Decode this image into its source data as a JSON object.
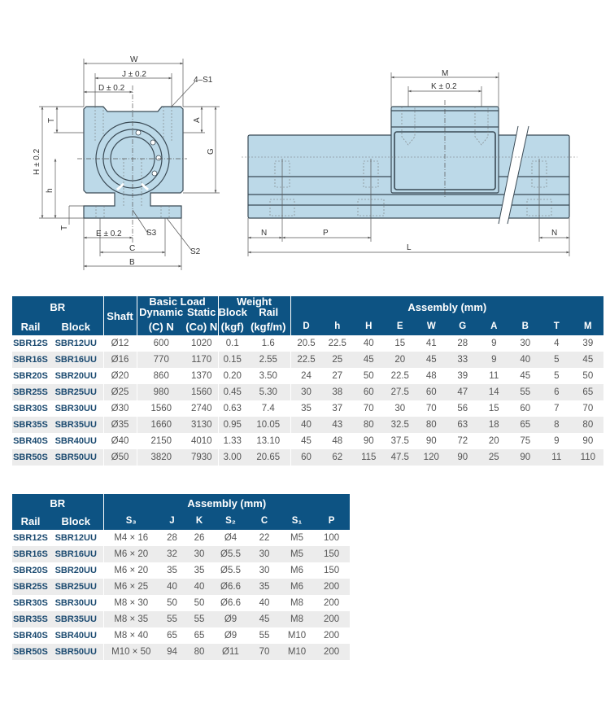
{
  "colors": {
    "header": "#0d5383",
    "code_text": "#1b4a70",
    "part_fill": "#bcd9e8",
    "alt_row": "#ececec"
  },
  "drawings": {
    "front": {
      "W": "W",
      "J": "J ± 0.2",
      "D": "D ± 0.2",
      "S1": "4–S1",
      "T": "T",
      "A": "A",
      "H": "H ± 0.2",
      "G": "G",
      "h": "h",
      "T2": "T",
      "E": "E ± 0.2",
      "S3": "S3",
      "C": "C",
      "S2": "S2",
      "B": "B"
    },
    "side": {
      "M": "M",
      "K": "K ± 0.2",
      "N1": "N",
      "P": "P",
      "N2": "N",
      "L": "L"
    }
  },
  "table1": {
    "group_br": "BR",
    "col_rail": "Rail",
    "col_block": "Block",
    "col_shaft": "Shaft",
    "group_load": "Basic Load",
    "col_dynamic": "Dynamic",
    "col_dynamic_unit": "(C) N",
    "col_static": "Static",
    "col_static_unit": "(Co) N",
    "group_weight": "Weight",
    "col_wblock": "Block",
    "col_wblock_unit": "(kgf)",
    "col_wrail": "Rail",
    "col_wrail_unit": "(kgf/m)",
    "group_assembly": "Assembly (mm)",
    "assembly_cols": [
      "D",
      "h",
      "H",
      "E",
      "W",
      "G",
      "A",
      "B",
      "T",
      "M"
    ],
    "rows": [
      [
        "SBR12S",
        "SBR12UU",
        "Ø12",
        "600",
        "1020",
        "0.1",
        "1.6",
        "20.5",
        "22.5",
        "40",
        "15",
        "41",
        "28",
        "9",
        "30",
        "4",
        "39"
      ],
      [
        "SBR16S",
        "SBR16UU",
        "Ø16",
        "770",
        "1170",
        "0.15",
        "2.55",
        "22.5",
        "25",
        "45",
        "20",
        "45",
        "33",
        "9",
        "40",
        "5",
        "45"
      ],
      [
        "SBR20S",
        "SBR20UU",
        "Ø20",
        "860",
        "1370",
        "0.20",
        "3.50",
        "24",
        "27",
        "50",
        "22.5",
        "48",
        "39",
        "11",
        "45",
        "5",
        "50"
      ],
      [
        "SBR25S",
        "SBR25UU",
        "Ø25",
        "980",
        "1560",
        "0.45",
        "5.30",
        "30",
        "38",
        "60",
        "27.5",
        "60",
        "47",
        "14",
        "55",
        "6",
        "65"
      ],
      [
        "SBR30S",
        "SBR30UU",
        "Ø30",
        "1560",
        "2740",
        "0.63",
        "7.4",
        "35",
        "37",
        "70",
        "30",
        "70",
        "56",
        "15",
        "60",
        "7",
        "70"
      ],
      [
        "SBR35S",
        "SBR35UU",
        "Ø35",
        "1660",
        "3130",
        "0.95",
        "10.05",
        "40",
        "43",
        "80",
        "32.5",
        "80",
        "63",
        "18",
        "65",
        "8",
        "80"
      ],
      [
        "SBR40S",
        "SBR40UU",
        "Ø40",
        "2150",
        "4010",
        "1.33",
        "13.10",
        "45",
        "48",
        "90",
        "37.5",
        "90",
        "72",
        "20",
        "75",
        "9",
        "90"
      ],
      [
        "SBR50S",
        "SBR50UU",
        "Ø50",
        "3820",
        "7930",
        "3.00",
        "20.65",
        "60",
        "62",
        "115",
        "47.5",
        "120",
        "90",
        "25",
        "90",
        "11",
        "110"
      ]
    ]
  },
  "table2": {
    "group_br": "BR",
    "col_rail": "Rail",
    "col_block": "Block",
    "group_assembly": "Assembly (mm)",
    "assembly_cols": [
      "S₃",
      "J",
      "K",
      "S₂",
      "C",
      "S₁",
      "P"
    ],
    "rows": [
      [
        "SBR12S",
        "SBR12UU",
        "M4 × 16",
        "28",
        "26",
        "Ø4",
        "22",
        "M5",
        "100"
      ],
      [
        "SBR16S",
        "SBR16UU",
        "M6 × 20",
        "32",
        "30",
        "Ø5.5",
        "30",
        "M5",
        "150"
      ],
      [
        "SBR20S",
        "SBR20UU",
        "M6 × 20",
        "35",
        "35",
        "Ø5.5",
        "30",
        "M6",
        "150"
      ],
      [
        "SBR25S",
        "SBR25UU",
        "M6 × 25",
        "40",
        "40",
        "Ø6.6",
        "35",
        "M6",
        "200"
      ],
      [
        "SBR30S",
        "SBR30UU",
        "M8 × 30",
        "50",
        "50",
        "Ø6.6",
        "40",
        "M8",
        "200"
      ],
      [
        "SBR35S",
        "SBR35UU",
        "M8 × 35",
        "55",
        "55",
        "Ø9",
        "45",
        "M8",
        "200"
      ],
      [
        "SBR40S",
        "SBR40UU",
        "M8 × 40",
        "65",
        "65",
        "Ø9",
        "55",
        "M10",
        "200"
      ],
      [
        "SBR50S",
        "SBR50UU",
        "M10 × 50",
        "94",
        "80",
        "Ø11",
        "70",
        "M10",
        "200"
      ]
    ]
  }
}
